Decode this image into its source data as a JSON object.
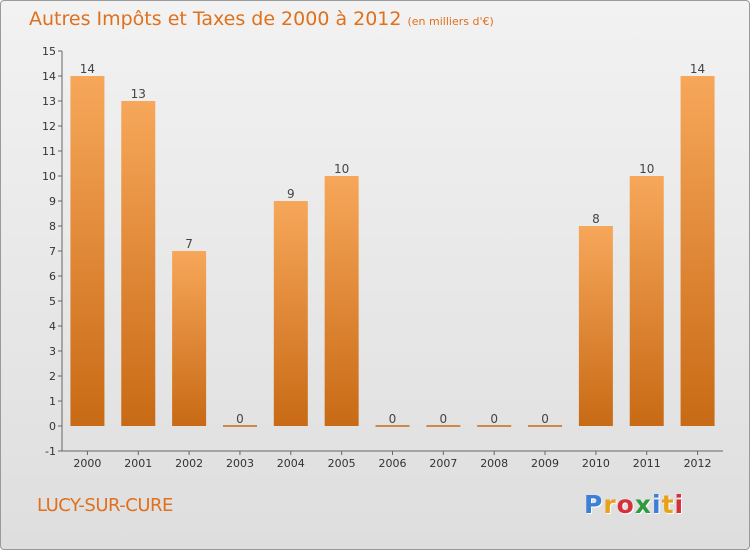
{
  "header": {
    "title": "Autres Impôts et Taxes de 2000 à 2012",
    "unit": "(en milliers d'€)"
  },
  "footer": {
    "location": "LUCY-SUR-CURE",
    "logo_letters": [
      "P",
      "r",
      "o",
      "x",
      "i",
      "t",
      "i"
    ],
    "logo_colors": [
      "#3b7fd6",
      "#e8a21a",
      "#d6303a",
      "#2e9b3e",
      "#3b7fd6",
      "#e8a21a",
      "#d6303a"
    ]
  },
  "colors": {
    "bar_light": "#f7a75a",
    "bar_dark": "#c86a15",
    "accent_text": "#e0701c"
  },
  "chart_data": {
    "type": "bar",
    "categories": [
      "2000",
      "2001",
      "2002",
      "2003",
      "2004",
      "2005",
      "2006",
      "2007",
      "2008",
      "2009",
      "2010",
      "2011",
      "2012"
    ],
    "values": [
      14,
      13,
      7,
      0,
      9,
      10,
      0,
      0,
      0,
      0,
      8,
      10,
      14
    ],
    "y_ticks": [
      "-1",
      "0",
      "1",
      "2",
      "3",
      "4",
      "5",
      "6",
      "7",
      "8",
      "9",
      "10",
      "11",
      "12",
      "13",
      "14",
      "15"
    ],
    "ylim": [
      -1,
      15
    ],
    "grid": false,
    "xlabel": "",
    "ylabel": ""
  }
}
